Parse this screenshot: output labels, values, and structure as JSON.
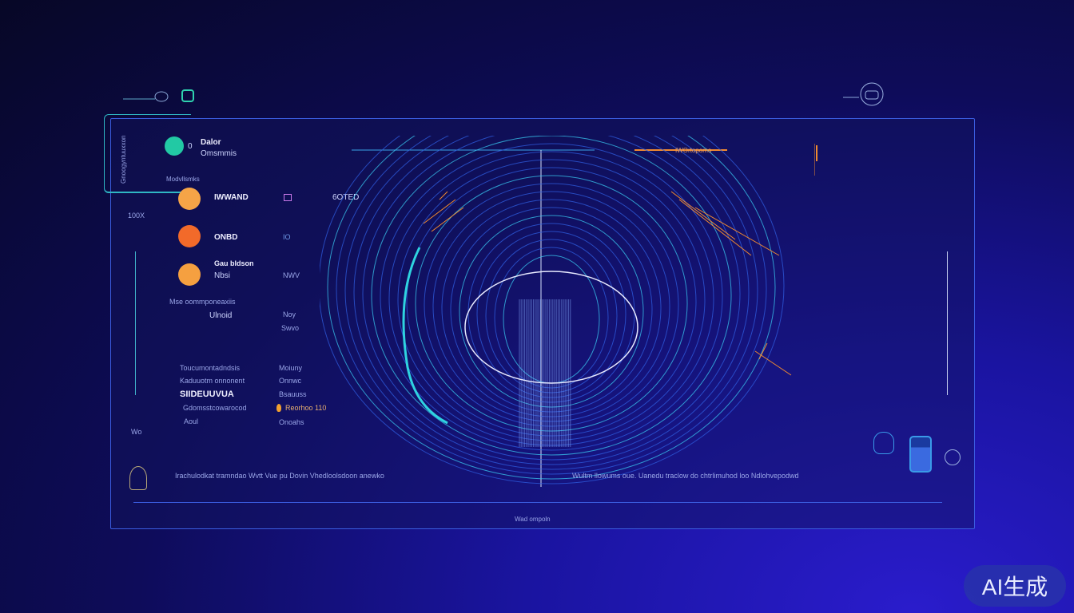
{
  "header": {
    "title": "Dalor",
    "subtitle": "Omsmmis",
    "status_dot": "0"
  },
  "side": {
    "vertical_label": "Gnoogyntuuxxon",
    "top_value": "100X",
    "bottom_value": "Wo"
  },
  "section_label": "Modvllsmks",
  "rows": [
    {
      "label": "IWWAND",
      "value": "",
      "extra": "6OTED",
      "color": "#f5a447"
    },
    {
      "label": "ONBD",
      "value": "IO",
      "extra": "",
      "color": "#f26a2a"
    },
    {
      "label": "Gau bldson",
      "sub": "Nbsi",
      "value": "NWV",
      "extra": "",
      "color": "#f5a040"
    }
  ],
  "group": {
    "label": "Mse oommponeaxiis",
    "value": "Ulnoid",
    "v1": "Noy",
    "v2": "Swvo"
  },
  "list": [
    {
      "left": "Toucumontadndsis",
      "right": "Moiuny"
    },
    {
      "left": "Kaduuotm onnonent",
      "right": "Onnwc"
    },
    {
      "left": "SIIDEUUVUA",
      "right": "Bsauuss"
    },
    {
      "left": "Gdomsstcowarocod",
      "right": "Reorhoo 110"
    },
    {
      "left": "Aoul",
      "right": "Onoahs"
    }
  ],
  "chart_top": {
    "left_label": "",
    "right_label": "IWOrtopomo"
  },
  "captions": {
    "left": "Irachulodkat tramndao Wvtt Vue pu  Dovin  Vhedloolsdoon anewko",
    "right": "Wultm llowums  oue. Uanedu traclow do chtrlimuhod loo Ndlohvepodwd"
  },
  "footer": {
    "label": "Wad ompoln"
  },
  "badge": "AI生成",
  "colors": {
    "accent_cyan": "#2fd3e0",
    "accent_orange": "#f08a30",
    "border": "#3b5de0"
  }
}
